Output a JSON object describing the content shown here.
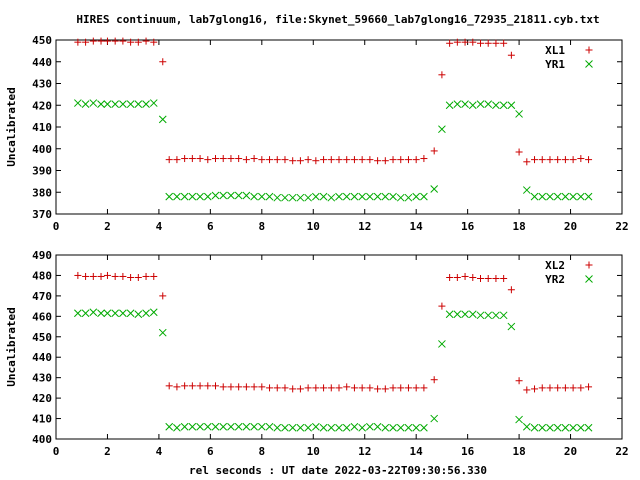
{
  "title": "HIRES continuum, lab7glong16, file:Skynet_59660_lab7glong16_72935_21811.cyb.txt",
  "xlabel": "rel seconds : UT date 2022-03-22T09:30:56.330",
  "colors": {
    "red": "#cc0000",
    "green": "#00aa00",
    "axis": "#000000"
  },
  "chart_data": [
    {
      "type": "scatter",
      "ylabel": "Uncalibrated",
      "xlim": [
        0,
        22
      ],
      "ylim": [
        370,
        450
      ],
      "xticks": [
        "0",
        "2",
        "4",
        "6",
        "8",
        "10",
        "12",
        "14",
        "16",
        "18",
        "20",
        "22"
      ],
      "yticks": [
        "370",
        "380",
        "390",
        "400",
        "410",
        "420",
        "430",
        "440",
        "450"
      ],
      "legend_position": "top-right",
      "series": [
        {
          "name": "XL1",
          "marker": "plus",
          "color": "#cc0000",
          "x": [
            0.85,
            1.15,
            1.45,
            1.75,
            2.0,
            2.3,
            2.6,
            2.9,
            3.2,
            3.5,
            3.8,
            4.15,
            4.4,
            4.7,
            5.0,
            5.3,
            5.6,
            5.9,
            6.2,
            6.5,
            6.8,
            7.1,
            7.4,
            7.7,
            8.0,
            8.3,
            8.6,
            8.9,
            9.2,
            9.5,
            9.8,
            10.1,
            10.4,
            10.7,
            11.0,
            11.3,
            11.6,
            11.9,
            12.2,
            12.5,
            12.8,
            13.1,
            13.4,
            13.7,
            14.0,
            14.3,
            14.7,
            15.0,
            15.3,
            15.6,
            15.9,
            16.2,
            16.5,
            16.8,
            17.1,
            17.4,
            17.7,
            18.0,
            18.3,
            18.6,
            18.9,
            19.2,
            19.5,
            19.8,
            20.1,
            20.4,
            20.7
          ],
          "y": [
            449,
            449,
            449.5,
            449.5,
            449.5,
            449.5,
            449.5,
            449,
            449,
            449.5,
            449,
            440,
            395,
            395,
            395.5,
            395.5,
            395.5,
            395,
            395.5,
            395.5,
            395.5,
            395.5,
            395,
            395.5,
            395,
            395,
            395,
            395,
            394.5,
            394.5,
            395,
            394.5,
            395,
            395,
            395,
            395,
            395,
            395,
            395,
            394.5,
            394.5,
            395,
            395,
            395,
            395,
            395.5,
            399,
            434,
            448.5,
            449,
            449,
            449,
            448.5,
            448.5,
            448.5,
            448.5,
            443,
            398.5,
            394,
            395,
            395,
            395,
            395,
            395,
            395,
            395.5,
            395
          ]
        },
        {
          "name": "YR1",
          "marker": "cross",
          "color": "#00aa00",
          "x": [
            0.85,
            1.15,
            1.45,
            1.75,
            2.0,
            2.3,
            2.6,
            2.9,
            3.2,
            3.5,
            3.8,
            4.15,
            4.4,
            4.7,
            5.0,
            5.3,
            5.6,
            5.9,
            6.2,
            6.5,
            6.8,
            7.1,
            7.4,
            7.7,
            8.0,
            8.3,
            8.6,
            8.9,
            9.2,
            9.5,
            9.8,
            10.1,
            10.4,
            10.7,
            11.0,
            11.3,
            11.6,
            11.9,
            12.2,
            12.5,
            12.8,
            13.1,
            13.4,
            13.7,
            14.0,
            14.3,
            14.7,
            15.0,
            15.3,
            15.6,
            15.9,
            16.2,
            16.5,
            16.8,
            17.1,
            17.4,
            17.7,
            18.0,
            18.3,
            18.6,
            18.9,
            19.2,
            19.5,
            19.8,
            20.1,
            20.4,
            20.7
          ],
          "y": [
            421,
            420.5,
            421,
            420.5,
            420.5,
            420.5,
            420.5,
            420.5,
            420.5,
            420.5,
            421,
            413.5,
            378,
            378,
            378,
            378,
            378,
            378,
            378.5,
            378.5,
            378.5,
            378.5,
            378.5,
            378,
            378,
            378,
            377.5,
            377.5,
            377.5,
            377.5,
            377.5,
            378,
            378,
            377.5,
            378,
            378,
            378,
            378,
            378,
            378,
            378,
            378,
            377.5,
            377.5,
            378,
            378,
            381.5,
            409,
            420,
            420.5,
            420.5,
            420,
            420.5,
            420.5,
            420,
            420,
            420,
            416,
            381,
            378,
            378,
            378,
            378,
            378,
            378,
            378,
            378
          ]
        }
      ]
    },
    {
      "type": "scatter",
      "ylabel": "Uncalibrated",
      "xlim": [
        0,
        22
      ],
      "ylim": [
        400,
        490
      ],
      "xticks": [
        "0",
        "2",
        "4",
        "6",
        "8",
        "10",
        "12",
        "14",
        "16",
        "18",
        "20",
        "22"
      ],
      "yticks": [
        "400",
        "410",
        "420",
        "430",
        "440",
        "450",
        "460",
        "470",
        "480",
        "490"
      ],
      "legend_position": "top-right",
      "series": [
        {
          "name": "XL2",
          "marker": "plus",
          "color": "#cc0000",
          "x": [
            0.85,
            1.15,
            1.45,
            1.75,
            2.0,
            2.3,
            2.6,
            2.9,
            3.2,
            3.5,
            3.8,
            4.15,
            4.4,
            4.7,
            5.0,
            5.3,
            5.6,
            5.9,
            6.2,
            6.5,
            6.8,
            7.1,
            7.4,
            7.7,
            8.0,
            8.3,
            8.6,
            8.9,
            9.2,
            9.5,
            9.8,
            10.1,
            10.4,
            10.7,
            11.0,
            11.3,
            11.6,
            11.9,
            12.2,
            12.5,
            12.8,
            13.1,
            13.4,
            13.7,
            14.0,
            14.3,
            14.7,
            15.0,
            15.3,
            15.6,
            15.9,
            16.2,
            16.5,
            16.8,
            17.1,
            17.4,
            17.7,
            18.0,
            18.3,
            18.6,
            18.9,
            19.2,
            19.5,
            19.8,
            20.1,
            20.4,
            20.7
          ],
          "y": [
            480,
            479.5,
            479.5,
            479.5,
            480,
            479.5,
            479.5,
            479,
            479,
            479.5,
            479.5,
            470,
            426,
            425.5,
            426,
            426,
            426,
            426,
            426,
            425.5,
            425.5,
            425.5,
            425.5,
            425.5,
            425.5,
            425,
            425,
            425,
            424.5,
            424.5,
            425,
            425,
            425,
            425,
            425,
            425.5,
            425,
            425,
            425,
            424.5,
            424.5,
            425,
            425,
            425,
            425,
            425,
            429,
            465,
            479,
            479,
            479.5,
            479,
            478.5,
            478.5,
            478.5,
            478.5,
            473,
            428.5,
            424,
            424.5,
            425,
            425,
            425,
            425,
            425,
            425,
            425.5
          ]
        },
        {
          "name": "YR2",
          "marker": "cross",
          "color": "#00aa00",
          "x": [
            0.85,
            1.15,
            1.45,
            1.75,
            2.0,
            2.3,
            2.6,
            2.9,
            3.2,
            3.5,
            3.8,
            4.15,
            4.4,
            4.7,
            5.0,
            5.3,
            5.6,
            5.9,
            6.2,
            6.5,
            6.8,
            7.1,
            7.4,
            7.7,
            8.0,
            8.3,
            8.6,
            8.9,
            9.2,
            9.5,
            9.8,
            10.1,
            10.4,
            10.7,
            11.0,
            11.3,
            11.6,
            11.9,
            12.2,
            12.5,
            12.8,
            13.1,
            13.4,
            13.7,
            14.0,
            14.3,
            14.7,
            15.0,
            15.3,
            15.6,
            15.9,
            16.2,
            16.5,
            16.8,
            17.1,
            17.4,
            17.7,
            18.0,
            18.3,
            18.6,
            18.9,
            19.2,
            19.5,
            19.8,
            20.1,
            20.4,
            20.7
          ],
          "y": [
            461.5,
            461.5,
            462,
            461.5,
            461.5,
            461.5,
            461.5,
            461.5,
            461,
            461.5,
            462,
            452,
            406,
            405.5,
            406,
            406,
            406,
            406,
            406,
            406,
            406,
            406,
            406,
            406,
            406,
            406,
            405.5,
            405.5,
            405.5,
            405.5,
            405.5,
            406,
            405.5,
            405.5,
            405.5,
            405.5,
            406,
            405.5,
            406,
            406,
            405.5,
            405.5,
            405.5,
            405.5,
            405.5,
            405.5,
            410,
            446.5,
            461,
            461,
            461,
            461,
            460.5,
            460.5,
            460.5,
            460.5,
            455,
            409.5,
            406,
            405.5,
            405.5,
            405.5,
            405.5,
            405.5,
            405.5,
            405.5,
            405.5
          ]
        }
      ]
    }
  ]
}
